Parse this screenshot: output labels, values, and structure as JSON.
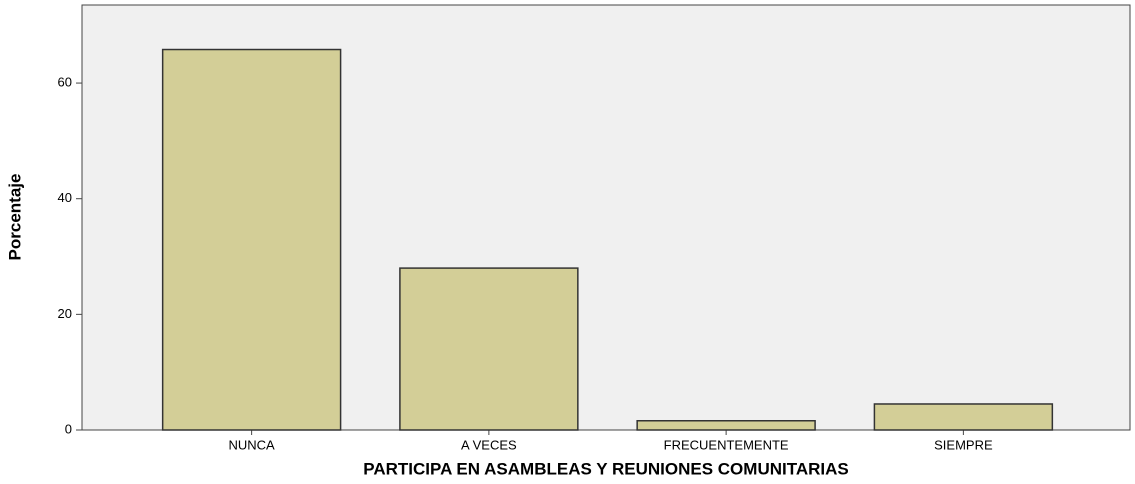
{
  "chart_data": {
    "type": "bar",
    "x_label": "PARTICIPA EN ASAMBLEAS Y REUNIONES COMUNITARIAS",
    "y_label": "Porcentaje",
    "categories": [
      "NUNCA",
      "A VECES",
      "FRECUENTEMENTE",
      "SIEMPRE"
    ],
    "values": [
      65.8,
      28.0,
      1.6,
      4.5
    ],
    "color": "#d3ce97",
    "ylim": [
      0,
      73.5
    ],
    "yticks": [
      0,
      20,
      40,
      60
    ],
    "grid": false
  }
}
